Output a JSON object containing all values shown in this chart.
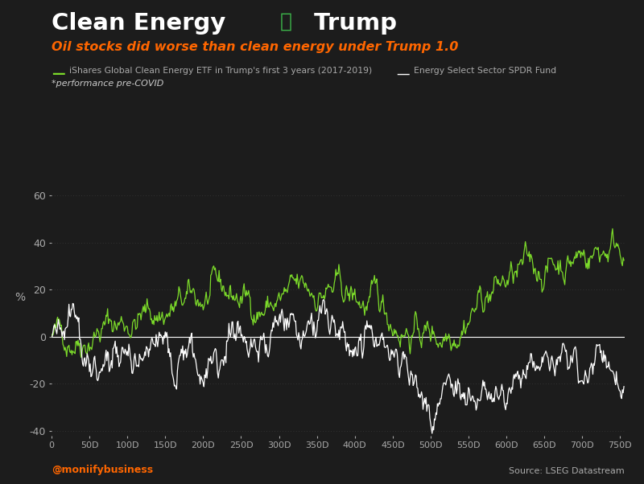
{
  "title_part1": "Clean Energy ",
  "title_heart": "♥",
  "title_part2": " Trump",
  "subtitle": "Oil stocks did worse than clean energy under Trump 1.0",
  "legend_line1": "iShares Global Clean Energy ETF in Trump's first 3 years (2017-2019)",
  "legend_line2": "Energy Select Sector SPDR Fund",
  "annotation": "*performance pre-COVID",
  "xlabel_bottom_left": "@moniifybusiness",
  "xlabel_bottom_right": "Source: LSEG Datastream",
  "ylabel": "%",
  "ylim": [
    -42,
    65
  ],
  "yticks": [
    -40,
    -20,
    0,
    20,
    40,
    60
  ],
  "xticks": [
    0,
    50,
    100,
    150,
    200,
    250,
    300,
    350,
    400,
    450,
    500,
    550,
    600,
    650,
    700,
    750
  ],
  "n_points": 756,
  "bg_color": "#1c1c1c",
  "clean_energy_color": "#7cdb2a",
  "oil_color": "#ffffff",
  "title_color": "#ffffff",
  "subtitle_color": "#ff6600",
  "annotation_color": "#cccccc",
  "grid_color": "#3a3a3a",
  "tick_color": "#aaaaaa",
  "heart_color": "#3cb54a"
}
